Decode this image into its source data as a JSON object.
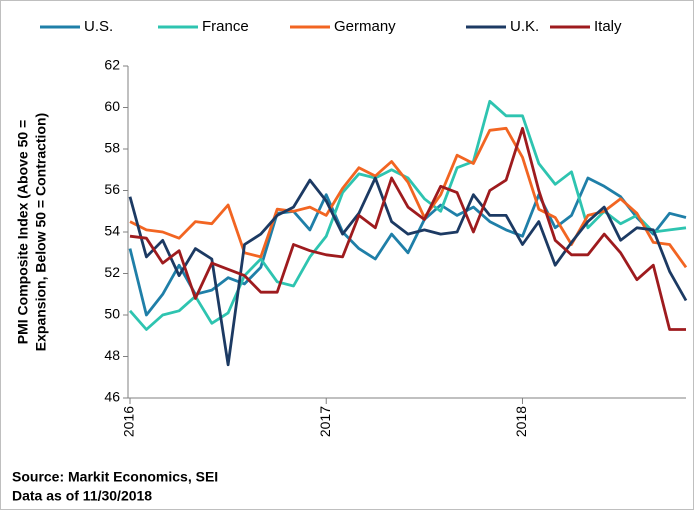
{
  "chart_data": {
    "type": "line",
    "ylabel": [
      "PMI Composite Index (Above 50 =",
      "Expansion, Below 50 = Contraction)"
    ],
    "source": "Source: Markit Economics, SEI",
    "note": "Data as of 11/30/2018",
    "categories": [
      "2016",
      null,
      null,
      null,
      null,
      null,
      null,
      null,
      null,
      null,
      null,
      null,
      "2017",
      null,
      null,
      null,
      null,
      null,
      null,
      null,
      null,
      null,
      null,
      null,
      "2018",
      null,
      null,
      null,
      null,
      null,
      null,
      null,
      null,
      null,
      null
    ],
    "ylim": [
      46,
      62
    ],
    "yticks": [
      46,
      48,
      50,
      52,
      54,
      56,
      58,
      60,
      62
    ],
    "grid": false,
    "legend": "top",
    "series": [
      {
        "name": "U.S.",
        "color": "#1f7fa8",
        "values": [
          53.2,
          50.0,
          51.0,
          52.4,
          51.0,
          51.2,
          51.8,
          51.5,
          52.3,
          54.9,
          55.0,
          54.1,
          55.8,
          54.0,
          53.2,
          52.7,
          53.9,
          53.0,
          54.6,
          55.3,
          54.8,
          55.2,
          54.5,
          54.1,
          53.8,
          55.8,
          54.2,
          54.8,
          56.6,
          56.2,
          55.7,
          54.7,
          53.9,
          54.9,
          54.7
        ]
      },
      {
        "name": "France",
        "color": "#2ec4b0",
        "values": [
          50.2,
          49.3,
          50.0,
          50.2,
          50.9,
          49.6,
          50.1,
          51.9,
          52.7,
          51.6,
          51.4,
          52.8,
          53.8,
          55.9,
          56.8,
          56.6,
          57.0,
          56.6,
          55.6,
          55.0,
          57.1,
          57.4,
          60.3,
          59.6,
          59.6,
          57.3,
          56.3,
          56.9,
          54.2,
          55.0,
          54.4,
          54.8,
          54.0,
          54.1,
          54.2
        ]
      },
      {
        "name": "Germany",
        "color": "#f26522",
        "values": [
          54.5,
          54.1,
          54.0,
          53.7,
          54.5,
          54.4,
          55.3,
          53.0,
          52.8,
          55.1,
          55.0,
          55.2,
          54.8,
          56.1,
          57.1,
          56.7,
          57.4,
          56.4,
          54.7,
          55.8,
          57.7,
          57.3,
          58.9,
          59.0,
          57.6,
          55.1,
          54.7,
          53.4,
          54.8,
          55.0,
          55.6,
          54.9,
          53.5,
          53.4,
          52.3
        ]
      },
      {
        "name": "U.K.",
        "color": "#1c3a63",
        "values": [
          55.7,
          52.8,
          53.6,
          51.9,
          53.2,
          52.7,
          47.6,
          53.4,
          53.9,
          54.8,
          55.2,
          56.5,
          55.5,
          53.9,
          54.9,
          56.6,
          54.5,
          53.9,
          54.1,
          53.9,
          54.0,
          55.8,
          54.8,
          54.8,
          53.4,
          54.5,
          52.4,
          53.5,
          54.5,
          55.2,
          53.6,
          54.2,
          54.1,
          52.1,
          50.7
        ]
      },
      {
        "name": "Italy",
        "color": "#9e1b1e",
        "values": [
          53.8,
          53.7,
          52.5,
          53.1,
          50.8,
          52.5,
          52.2,
          51.9,
          51.1,
          51.1,
          53.4,
          53.1,
          52.9,
          52.8,
          54.8,
          54.2,
          56.6,
          55.2,
          54.6,
          56.2,
          55.9,
          54.0,
          56.0,
          56.5,
          59.0,
          56.0,
          53.6,
          52.9,
          52.9,
          53.9,
          53.0,
          51.7,
          52.4,
          49.3,
          49.3
        ]
      }
    ]
  }
}
